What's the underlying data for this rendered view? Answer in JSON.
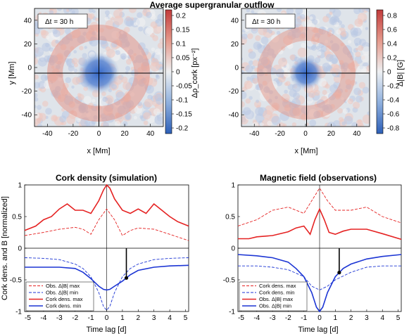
{
  "figure_title": "Average supergranular outflow",
  "maps": [
    {
      "dt_label": "Δt = 30 h",
      "xlabel": "x [Mm]",
      "ylabel": "y [Mm]",
      "x_ticks": [
        "-40",
        "-20",
        "0",
        "20",
        "40"
      ],
      "y_ticks": [
        "40",
        "20",
        "0",
        "-20",
        "-40"
      ],
      "colorbar_label": "Δρ_cork [px⁻²]",
      "colorbar_ticks": [
        "0.2",
        "0.15",
        "0.1",
        "0.05",
        "0",
        "-0.05",
        "-0.1",
        "-0.15",
        "-0.2"
      ],
      "colormap": {
        "negative": "#2c5fb8",
        "zero": "#e8ecf0",
        "positive": "#c23b3b"
      }
    },
    {
      "dt_label": "Δt = 30 h",
      "xlabel": "x [Mm]",
      "ylabel": "",
      "x_ticks": [
        "-40",
        "-20",
        "0",
        "20",
        "40"
      ],
      "y_ticks": [
        "40",
        "20",
        "0",
        "-20",
        "-40"
      ],
      "colorbar_label": "Δ|B| [G]",
      "colorbar_ticks": [
        "0.8",
        "0.6",
        "0.4",
        "0.2",
        "0",
        "-0.2",
        "-0.4",
        "-0.6",
        "-0.8"
      ],
      "colormap": {
        "negative": "#2c5fb8",
        "zero": "#e8ecf0",
        "positive": "#c23b3b"
      }
    }
  ],
  "chart_data": [
    {
      "type": "line",
      "title": "Cork density (simulation)",
      "xlabel": "Time lag [d]",
      "ylabel": "Cork dens. and B [normalized]",
      "xlim": [
        -5.2,
        5.2
      ],
      "ylim": [
        -1.0,
        1.0
      ],
      "x_ticks": [
        "-5",
        "-4",
        "-3",
        "-2",
        "-1",
        "0",
        "1",
        "2",
        "3",
        "4",
        "5"
      ],
      "y_ticks": [
        "1",
        "0.5",
        "0",
        "-0.5",
        "-1"
      ],
      "marker_x": 1.25,
      "legend": [
        {
          "label": "Obs. Δ|B| max",
          "color": "#e52222",
          "style": "dashed"
        },
        {
          "label": "Obs. Δ|B| min",
          "color": "#1c35d4",
          "style": "dashed"
        },
        {
          "label": "Cork dens. max",
          "color": "#e52222",
          "style": "solid"
        },
        {
          "label": "Cork dens. min",
          "color": "#1c35d4",
          "style": "solid"
        }
      ],
      "series": [
        {
          "name": "Obs. Δ|B| max",
          "x": [
            -5.2,
            -4,
            -3,
            -2,
            -1.5,
            -1,
            -0.5,
            0,
            0.5,
            1,
            1.5,
            2,
            3,
            4,
            5.2
          ],
          "values": [
            0.2,
            0.25,
            0.3,
            0.33,
            0.3,
            0.22,
            0.45,
            0.62,
            0.45,
            0.2,
            0.28,
            0.32,
            0.3,
            0.22,
            0.12
          ]
        },
        {
          "name": "Obs. Δ|B| min",
          "x": [
            -5.2,
            -4,
            -3,
            -2,
            -1.5,
            -1,
            -0.5,
            -0.2,
            0,
            0.2,
            0.5,
            1,
            1.5,
            2,
            3,
            4,
            5.2
          ],
          "values": [
            -0.15,
            -0.16,
            -0.18,
            -0.25,
            -0.32,
            -0.45,
            -0.7,
            -0.92,
            -0.98,
            -0.92,
            -0.7,
            -0.45,
            -0.32,
            -0.25,
            -0.18,
            -0.16,
            -0.15
          ]
        },
        {
          "name": "Cork dens. max",
          "x": [
            -5.2,
            -4.5,
            -4,
            -3.5,
            -3,
            -2.5,
            -2,
            -1.5,
            -1,
            -0.5,
            -0.2,
            0,
            0.2,
            0.5,
            1,
            1.5,
            2,
            2.5,
            3,
            3.5,
            4,
            4.5,
            5.2
          ],
          "values": [
            0.28,
            0.35,
            0.45,
            0.5,
            0.62,
            0.7,
            0.6,
            0.6,
            0.55,
            0.75,
            0.92,
            1.0,
            0.95,
            0.78,
            0.6,
            0.55,
            0.62,
            0.55,
            0.7,
            0.6,
            0.5,
            0.42,
            0.35
          ]
        },
        {
          "name": "Cork dens. min",
          "x": [
            -5.2,
            -4,
            -3,
            -2,
            -1.5,
            -1,
            -0.5,
            -0.2,
            0,
            0.2,
            0.5,
            1,
            1.5,
            2,
            3,
            4,
            5.2
          ],
          "values": [
            -0.3,
            -0.3,
            -0.3,
            -0.32,
            -0.38,
            -0.48,
            -0.6,
            -0.65,
            -0.66,
            -0.65,
            -0.6,
            -0.52,
            -0.42,
            -0.35,
            -0.3,
            -0.28,
            -0.27
          ]
        }
      ]
    },
    {
      "type": "line",
      "title": "Magnetic field (observations)",
      "xlabel": "Time lag [d]",
      "ylabel": "",
      "xlim": [
        -5.2,
        5.2
      ],
      "ylim": [
        -1.0,
        1.0
      ],
      "x_ticks": [
        "-5",
        "-4",
        "-3",
        "-2",
        "-1",
        "0",
        "1",
        "2",
        "3",
        "4",
        "5"
      ],
      "y_ticks": [
        "1",
        "0.5",
        "0",
        "-0.5",
        "-1"
      ],
      "marker_x": 1.25,
      "legend": [
        {
          "label": "Cork dens. max",
          "color": "#e52222",
          "style": "dashed"
        },
        {
          "label": "Cork dens. min",
          "color": "#1c35d4",
          "style": "dashed"
        },
        {
          "label": "Obs. Δ|B| max",
          "color": "#e52222",
          "style": "solid"
        },
        {
          "label": "Obs. Δ|B| min",
          "color": "#1c35d4",
          "style": "solid"
        }
      ],
      "series": [
        {
          "name": "Cork dens. max",
          "x": [
            -5.2,
            -4,
            -3,
            -2,
            -1,
            -0.5,
            0,
            0.5,
            1,
            2,
            3,
            4,
            5.2
          ],
          "values": [
            0.35,
            0.45,
            0.6,
            0.65,
            0.55,
            0.75,
            0.95,
            0.75,
            0.6,
            0.6,
            0.65,
            0.5,
            0.4
          ]
        },
        {
          "name": "Cork dens. min",
          "x": [
            -5.2,
            -4,
            -3,
            -2,
            -1,
            -0.5,
            0,
            0.5,
            1,
            2,
            3,
            4,
            5.2
          ],
          "values": [
            -0.28,
            -0.28,
            -0.3,
            -0.34,
            -0.45,
            -0.6,
            -0.66,
            -0.6,
            -0.5,
            -0.38,
            -0.3,
            -0.28,
            -0.28
          ]
        },
        {
          "name": "Obs. Δ|B| max",
          "x": [
            -5.2,
            -4.5,
            -4,
            -3,
            -2,
            -1.5,
            -1,
            -0.6,
            -0.3,
            0,
            0.3,
            0.6,
            1,
            1.5,
            2,
            3,
            4,
            5.2
          ],
          "values": [
            0.15,
            0.15,
            0.18,
            0.2,
            0.26,
            0.32,
            0.35,
            0.22,
            0.45,
            0.62,
            0.45,
            0.25,
            0.22,
            0.27,
            0.3,
            0.3,
            0.23,
            0.14
          ]
        },
        {
          "name": "Obs. Δ|B| min",
          "x": [
            -5.2,
            -4,
            -3,
            -2,
            -1.5,
            -1,
            -0.5,
            -0.2,
            0,
            0.2,
            0.5,
            1,
            1.5,
            2,
            3,
            4,
            5.2
          ],
          "values": [
            -0.1,
            -0.12,
            -0.15,
            -0.22,
            -0.32,
            -0.45,
            -0.7,
            -0.93,
            -1.0,
            -0.93,
            -0.7,
            -0.45,
            -0.32,
            -0.25,
            -0.17,
            -0.13,
            -0.1
          ]
        }
      ]
    }
  ]
}
